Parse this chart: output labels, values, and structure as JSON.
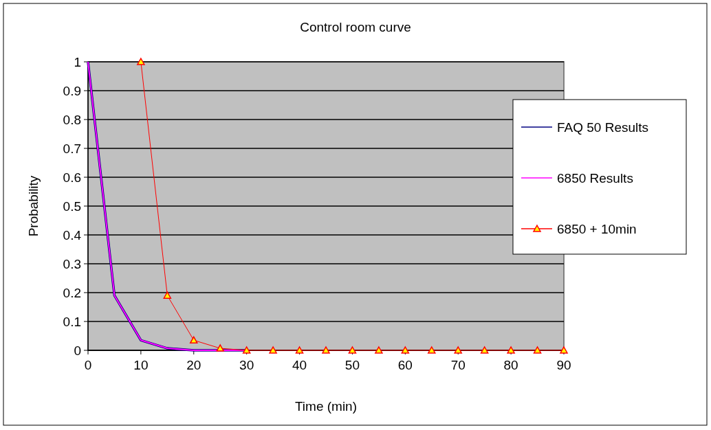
{
  "chart_data": {
    "type": "line",
    "title": "Control room curve",
    "xlabel": "Time (min)",
    "ylabel": "Probability",
    "xlim": [
      0,
      90
    ],
    "xticks": [
      0,
      10,
      20,
      30,
      40,
      50,
      60,
      70,
      80,
      90
    ],
    "ylim": [
      0,
      1
    ],
    "yticks": [
      0,
      0.1,
      0.2,
      0.3,
      0.4,
      0.5,
      0.6,
      0.7,
      0.8,
      0.9,
      1
    ],
    "grid": "y",
    "legend": "right",
    "series": [
      {
        "name": "FAQ 50 Results",
        "color": "#000080",
        "x": [
          0,
          5,
          10,
          15,
          20,
          25,
          30
        ],
        "values": [
          1,
          0.19,
          0.035,
          0.007,
          0,
          0,
          0
        ],
        "marker": "none"
      },
      {
        "name": "6850 Results",
        "color": "#ff00ff",
        "x": [
          0,
          5,
          10,
          15,
          20,
          25,
          30
        ],
        "values": [
          1,
          0.19,
          0.035,
          0.007,
          0,
          0,
          0
        ],
        "marker": "none"
      },
      {
        "name": "6850 + 10min",
        "color": "#ff0000",
        "x": [
          10,
          15,
          20,
          25,
          30,
          35,
          40,
          45,
          50,
          55,
          60,
          65,
          70,
          75,
          80,
          85,
          90
        ],
        "values": [
          1,
          0.19,
          0.035,
          0.007,
          0,
          0,
          0,
          0,
          0,
          0,
          0,
          0,
          0,
          0,
          0,
          0,
          0
        ],
        "marker": "triangle"
      }
    ]
  }
}
